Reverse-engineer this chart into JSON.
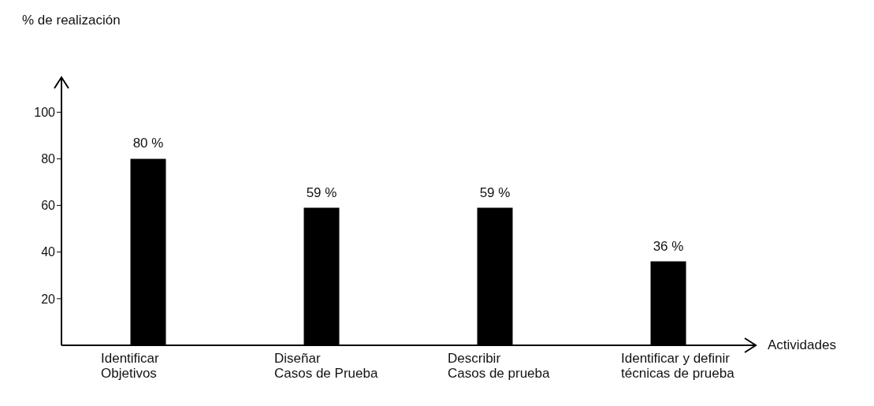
{
  "chart_data": {
    "type": "bar",
    "ylabel": "% de realización",
    "xlabel": "Actividades",
    "categories": [
      "Identificar\nObjetivos",
      "Diseñar\nCasos de Prueba",
      "Describir\nCasos de prueba",
      "Identificar y definir\ntécnicas de prueba"
    ],
    "values": [
      80,
      59,
      59,
      36
    ],
    "color": "#000000",
    "value_labels": [
      "80 %",
      "59 %",
      "59 %",
      "36 %"
    ],
    "ylim": [
      0,
      115
    ],
    "yticks": [
      20,
      40,
      60,
      80,
      100
    ],
    "grid": false,
    "legend": false
  }
}
